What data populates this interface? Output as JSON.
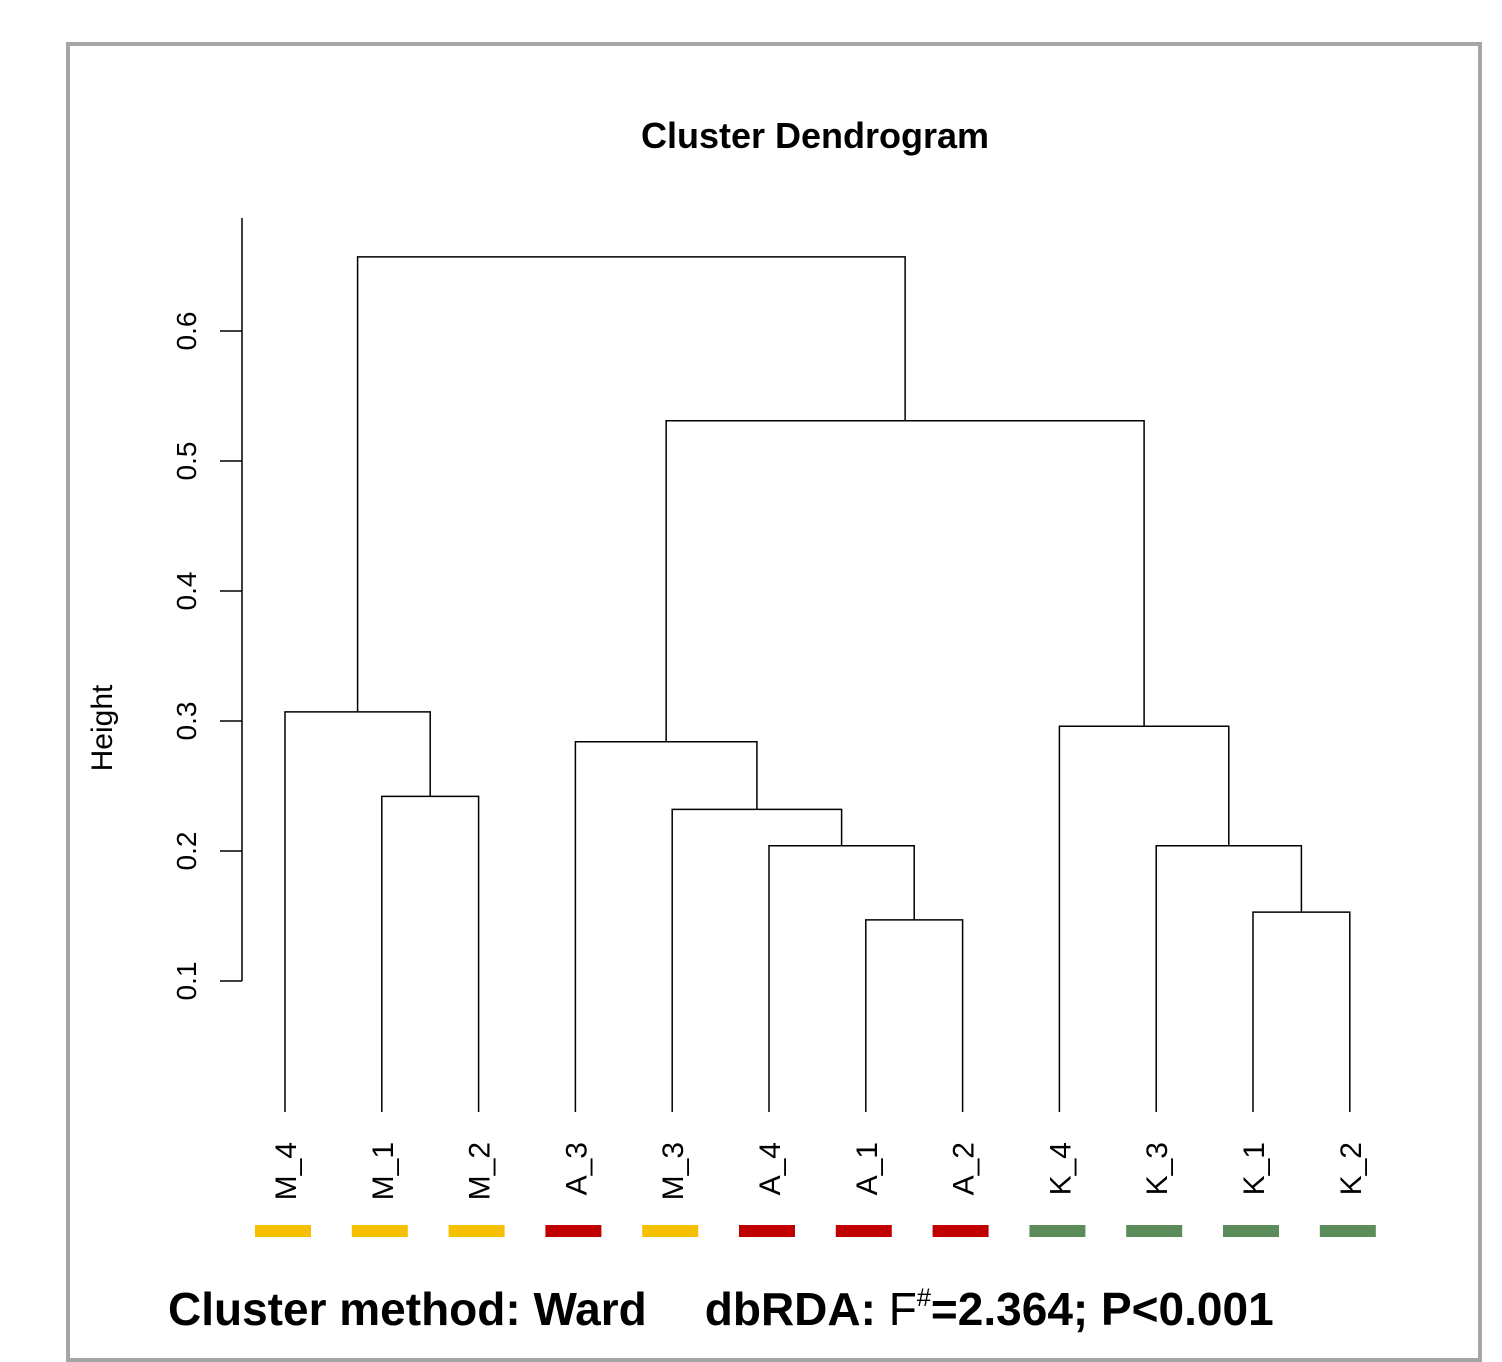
{
  "chart_data": {
    "type": "dendrogram",
    "title": "Cluster Dendrogram",
    "ylabel": "Height",
    "ylim": [
      0.1,
      0.6
    ],
    "yticks": [
      "0.1",
      "0.2",
      "0.3",
      "0.4",
      "0.5",
      "0.6"
    ],
    "leaves": [
      {
        "label": "M_4",
        "color": "#f5c000"
      },
      {
        "label": "M_1",
        "color": "#f5c000"
      },
      {
        "label": "M_2",
        "color": "#f5c000"
      },
      {
        "label": "A_3",
        "color": "#c00000"
      },
      {
        "label": "M_3",
        "color": "#f5c000"
      },
      {
        "label": "A_4",
        "color": "#c00000"
      },
      {
        "label": "A_1",
        "color": "#c00000"
      },
      {
        "label": "A_2",
        "color": "#c00000"
      },
      {
        "label": "K_4",
        "color": "#5b8c5a"
      },
      {
        "label": "K_3",
        "color": "#5b8c5a"
      },
      {
        "label": "K_1",
        "color": "#5b8c5a"
      },
      {
        "label": "K_2",
        "color": "#5b8c5a"
      }
    ],
    "merges": [
      {
        "a": "A_1",
        "b": "A_2",
        "height": 0.147
      },
      {
        "a": "K_1",
        "b": "K_2",
        "height": 0.153
      },
      {
        "a": "A_4",
        "b": 0,
        "height": 0.204
      },
      {
        "a": "K_3",
        "b": 1,
        "height": 0.204
      },
      {
        "a": "M_3",
        "b": 2,
        "height": 0.232
      },
      {
        "a": "M_1",
        "b": "M_2",
        "height": 0.242
      },
      {
        "a": "A_3",
        "b": 4,
        "height": 0.284
      },
      {
        "a": "K_4",
        "b": 3,
        "height": 0.296
      },
      {
        "a": "M_4",
        "b": 5,
        "height": 0.307
      },
      {
        "a": 6,
        "b": 7,
        "height": 0.531
      },
      {
        "a": 8,
        "b": 9,
        "height": 0.657
      }
    ]
  },
  "caption": {
    "method": "Cluster method: Ward",
    "dbrda_label": "dbRDA:",
    "f_letter": "F",
    "f_sup": "#",
    "stats": "=2.364; P<0.001"
  }
}
